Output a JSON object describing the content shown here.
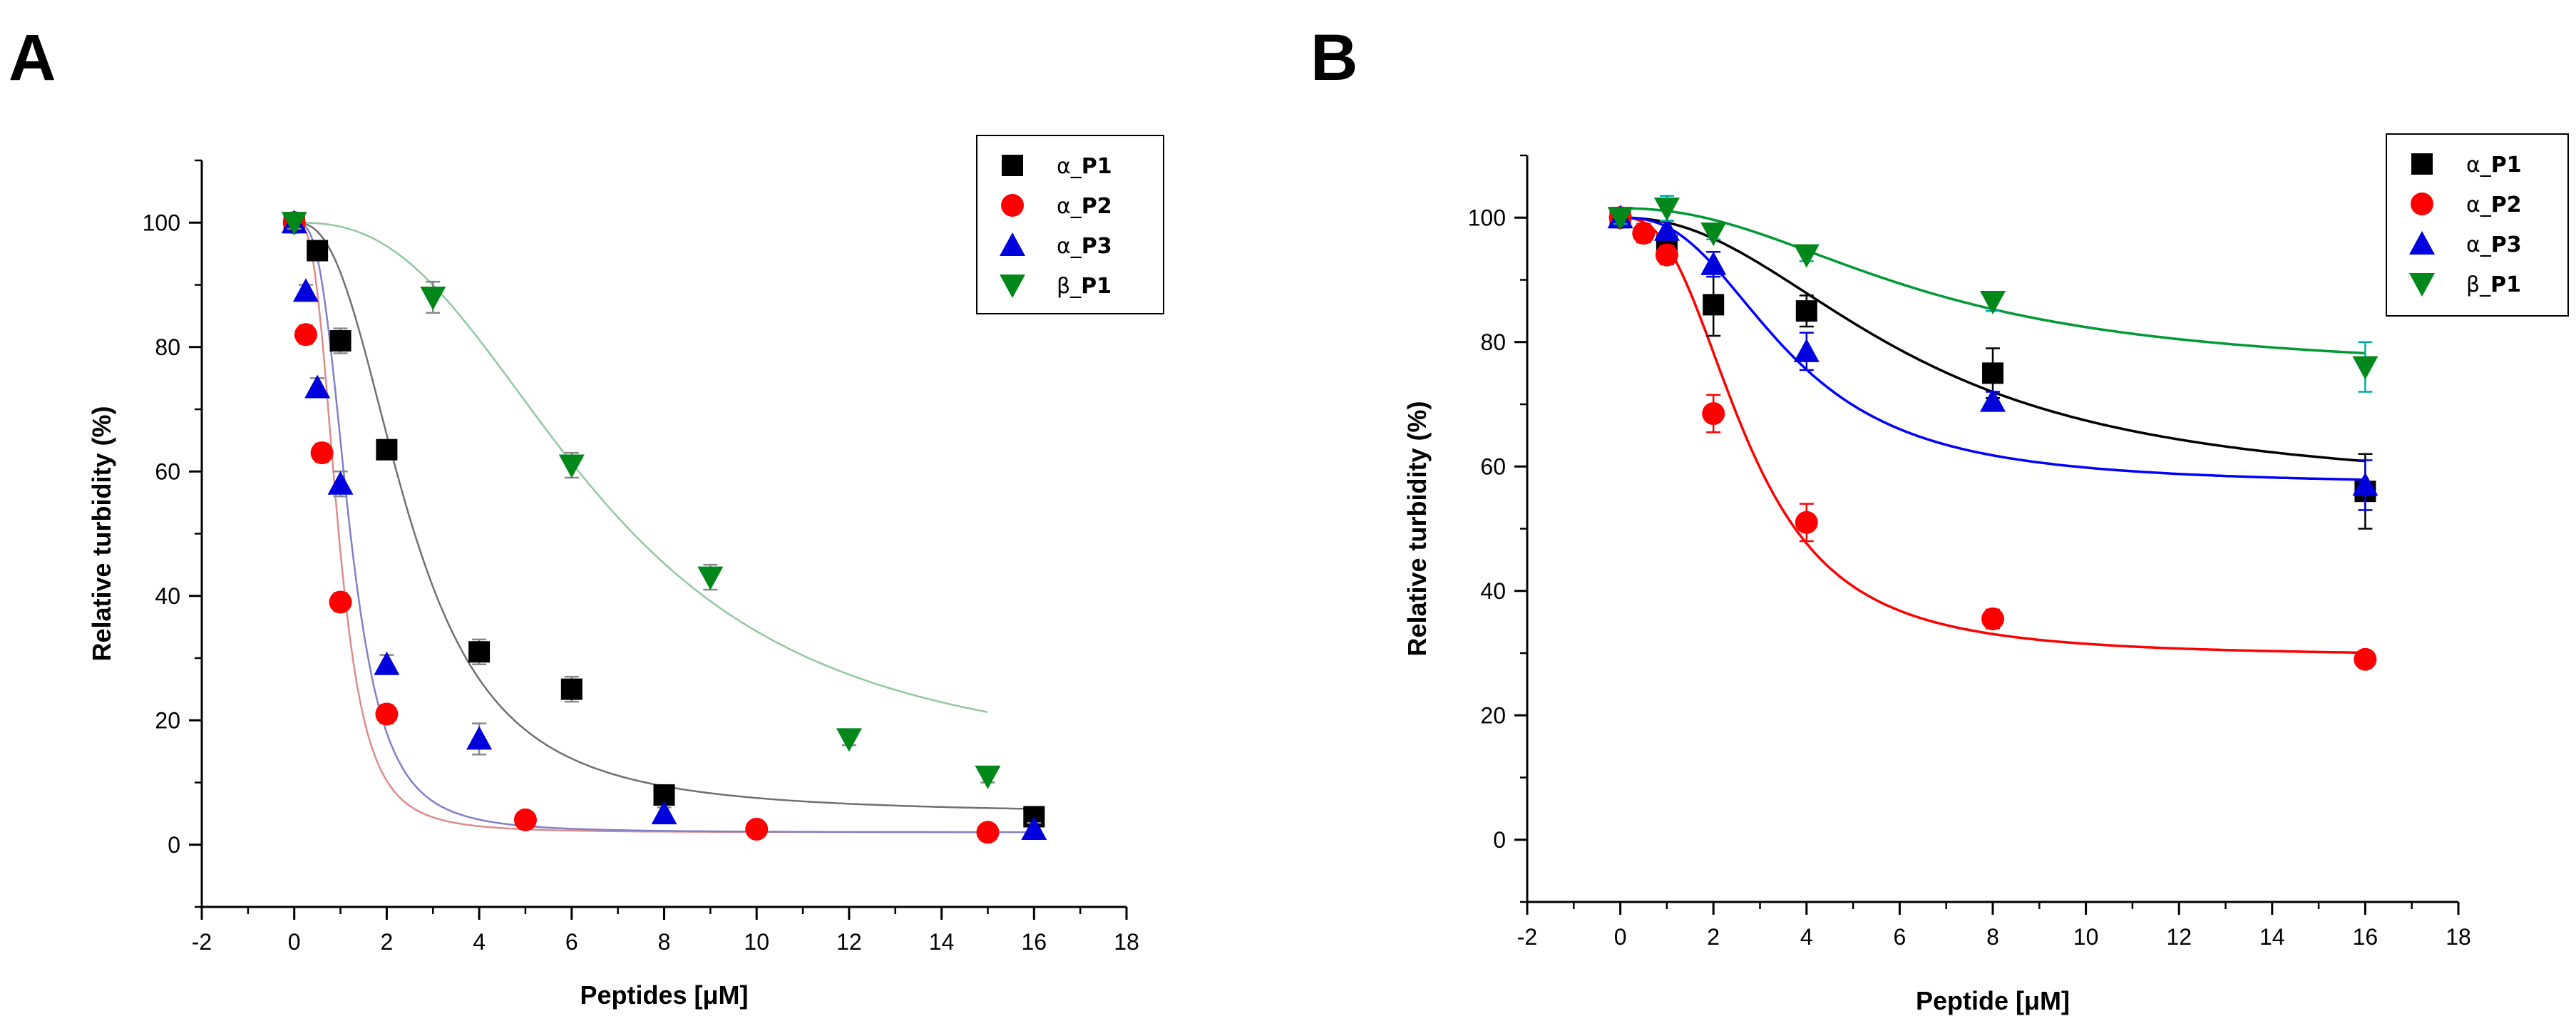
{
  "chart_data": [
    {
      "panel": "A",
      "type": "scatter",
      "xlabel": "Peptides [μM]",
      "ylabel": "Relative turbidity (%)",
      "xlim": [
        -2,
        18
      ],
      "ylim": [
        -10,
        110
      ],
      "xticks": [
        -2,
        0,
        2,
        4,
        6,
        8,
        10,
        12,
        14,
        16,
        18
      ],
      "yticks": [
        0,
        20,
        40,
        60,
        80,
        100
      ],
      "legend_position": "top-right",
      "series": [
        {
          "name_prefix": "α_",
          "name_bold": "P1",
          "marker": "square",
          "color": "#000000",
          "fit_color": "#707070",
          "x": [
            0,
            0.5,
            1,
            2,
            4,
            6,
            8,
            16
          ],
          "y": [
            100,
            95.5,
            81,
            63.5,
            31,
            25,
            8,
            4.5
          ],
          "err": [
            1,
            1,
            2,
            1,
            2,
            2,
            1.5,
            1.5
          ],
          "fit": {
            "A1": 100,
            "A2": 5,
            "x0": 2.5,
            "p": 2.6,
            "xmax": 16
          }
        },
        {
          "name_prefix": "α_",
          "name_bold": "P2",
          "marker": "circle",
          "color": "#ff0000",
          "fit_color": "#e08a8a",
          "x": [
            0,
            0.25,
            0.6,
            1,
            2,
            5,
            10,
            15
          ],
          "y": [
            100,
            82,
            63,
            39,
            21,
            4,
            2.5,
            2
          ],
          "err": [
            1,
            1.5,
            1.5,
            1.5,
            1.5,
            1,
            1,
            1
          ],
          "fit": {
            "A1": 100,
            "A2": 2,
            "x0": 0.95,
            "p": 3.2,
            "xmax": 15
          }
        },
        {
          "name_prefix": "α_",
          "name_bold": "P3",
          "marker": "triangle-up",
          "color": "#0000dd",
          "fit_color": "#8080c8",
          "x": [
            0,
            0.25,
            0.5,
            1,
            2,
            4,
            8,
            16
          ],
          "y": [
            100,
            89,
            73.5,
            58,
            29,
            17,
            5,
            2.5
          ],
          "err": [
            1,
            1,
            1.5,
            2,
            1.5,
            2.5,
            1,
            1
          ],
          "fit": {
            "A1": 100,
            "A2": 2,
            "x0": 1.2,
            "p": 3.2,
            "xmax": 16
          }
        },
        {
          "name_prefix": "β_",
          "name_bold": "P1",
          "marker": "triangle-down",
          "color": "#00881a",
          "fit_color": "#90c8a0",
          "x": [
            0,
            3,
            6,
            9,
            12,
            15
          ],
          "y": [
            100,
            88,
            61,
            43,
            17,
            11
          ],
          "err": [
            1,
            2.5,
            2,
            2,
            1,
            1
          ],
          "fit": {
            "A1": 100,
            "A2": 12,
            "x0": 6.6,
            "p": 2.6,
            "xmax": 15
          }
        }
      ]
    },
    {
      "panel": "B",
      "type": "scatter",
      "xlabel": "Peptide [μM]",
      "ylabel": "Relative turbidity (%)",
      "xlim": [
        -2,
        18
      ],
      "ylim": [
        -10,
        110
      ],
      "xticks": [
        -2,
        0,
        2,
        4,
        6,
        8,
        10,
        12,
        14,
        16,
        18
      ],
      "yticks": [
        0,
        20,
        40,
        60,
        80,
        100
      ],
      "legend_position": "top-right",
      "series": [
        {
          "name_prefix": "α_",
          "name_bold": "P1",
          "marker": "square",
          "color": "#000000",
          "fit_color": "#000000",
          "x": [
            0,
            1,
            2,
            4,
            8,
            16
          ],
          "y": [
            100,
            95.5,
            86,
            85,
            75,
            56
          ],
          "err": [
            1,
            1.5,
            5,
            2.5,
            4,
            6
          ],
          "fit": {
            "A1": 100,
            "A2": 56,
            "x0": 6.2,
            "p": 2.2,
            "xmax": 16
          }
        },
        {
          "name_prefix": "α_",
          "name_bold": "P2",
          "marker": "circle",
          "color": "#ff0000",
          "fit_color": "#ff0000",
          "x": [
            0,
            0.5,
            1,
            2,
            4,
            8,
            16
          ],
          "y": [
            100,
            97.5,
            94,
            68.5,
            51,
            35.5,
            29
          ],
          "err": [
            1,
            1.5,
            1.5,
            3,
            3,
            1.5,
            1
          ],
          "fit": {
            "A1": 100,
            "A2": 29.5,
            "x0": 2.7,
            "p": 2.7,
            "xmax": 16
          }
        },
        {
          "name_prefix": "α_",
          "name_bold": "P3",
          "marker": "triangle-up",
          "color": "#0000dd",
          "fit_color": "#0000ff",
          "x": [
            0,
            1,
            2,
            4,
            8,
            16
          ],
          "y": [
            100,
            98,
            92.5,
            78.5,
            70.5,
            57
          ],
          "err": [
            1,
            1.5,
            2,
            3,
            1.5,
            4
          ],
          "fit": {
            "A1": 100,
            "A2": 57,
            "x0": 3.6,
            "p": 2.6,
            "xmax": 16
          }
        },
        {
          "name_prefix": "β_",
          "name_bold": "P1",
          "marker": "triangle-down",
          "color": "#00881a",
          "fit_color": "#009933",
          "err_color": "#00aaaa",
          "x": [
            0,
            1,
            2,
            4,
            8,
            16
          ],
          "y": [
            100,
            101.5,
            97.5,
            94,
            86.5,
            76
          ],
          "err": [
            1,
            2,
            1,
            1,
            1.5,
            4
          ],
          "fit": {
            "A1": 101.5,
            "A2": 75,
            "x0": 6.5,
            "p": 2.2,
            "xmax": 16
          }
        }
      ]
    }
  ]
}
